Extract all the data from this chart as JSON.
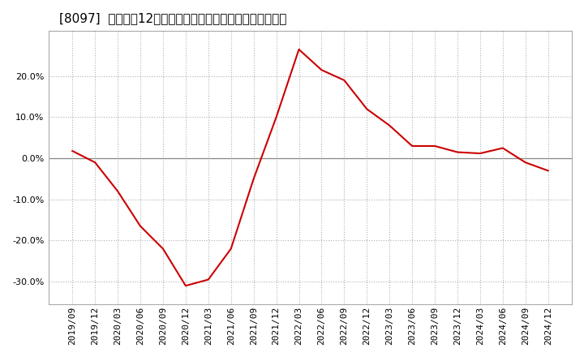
{
  "title": "[8097]  売上高の12か月移動合計の対前年同期増減率の推移",
  "line_color": "#cc0000",
  "background_color": "#ffffff",
  "plot_bg_color": "#ffffff",
  "grid_color": "#b0b0b0",
  "zero_line_color": "#888888",
  "ylim": [
    -0.355,
    0.31
  ],
  "yticks": [
    -0.3,
    -0.2,
    -0.1,
    0.0,
    0.1,
    0.2
  ],
  "dates": [
    "2019/09",
    "2019/12",
    "2020/03",
    "2020/06",
    "2020/09",
    "2020/12",
    "2021/03",
    "2021/06",
    "2021/09",
    "2021/12",
    "2022/03",
    "2022/06",
    "2022/09",
    "2022/12",
    "2023/03",
    "2023/06",
    "2023/09",
    "2023/12",
    "2024/03",
    "2024/06",
    "2024/09",
    "2024/12"
  ],
  "values": [
    0.018,
    -0.01,
    -0.08,
    -0.165,
    -0.22,
    -0.31,
    -0.295,
    -0.22,
    -0.05,
    0.1,
    0.265,
    0.215,
    0.19,
    0.12,
    0.08,
    0.03,
    0.03,
    0.015,
    0.012,
    0.025,
    -0.01,
    -0.03
  ],
  "title_fontsize": 11,
  "tick_fontsize": 8
}
